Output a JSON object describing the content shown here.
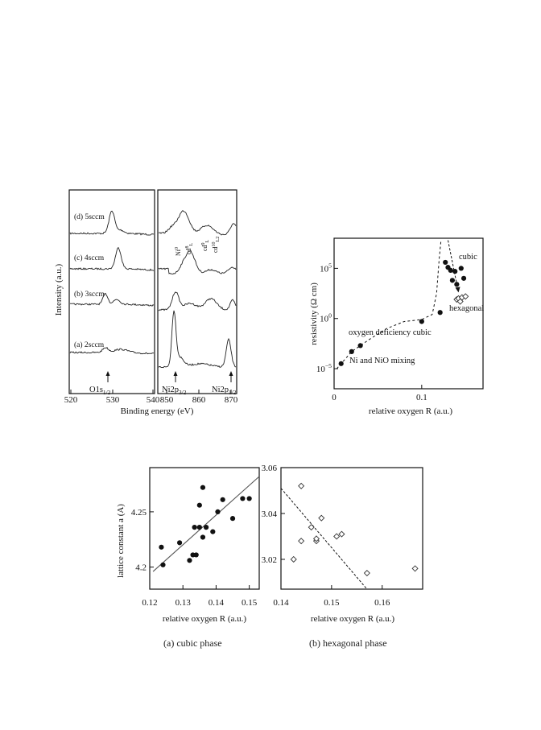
{
  "chart_data": [
    {
      "id": "xps",
      "type": "line",
      "ylabel": "Intensity    (a.u.)",
      "xlabel": "Binding energy (eV)",
      "panels": [
        {
          "xlim": [
            520,
            540
          ],
          "ticks": [
            "520",
            "530",
            "540"
          ]
        },
        {
          "xlim": [
            846,
            872
          ],
          "ticks": [
            "850",
            "860",
            "870"
          ]
        }
      ],
      "series": [
        {
          "name": "(d) 5sccm"
        },
        {
          "name": "(c) 4sccm"
        },
        {
          "name": "(b) 3sccm"
        },
        {
          "name": "(a) 2sccm"
        }
      ],
      "peak_labels": [
        "O1s",
        "Ni2p",
        "Ni2p"
      ],
      "peak_subs": [
        "1/2",
        "3/2",
        "1/2"
      ],
      "satellite_labels": [
        "Ni",
        "cd",
        "cd",
        "cd"
      ],
      "satellite_sups": [
        "0",
        "8",
        "9",
        "10"
      ],
      "satellite_subs": [
        "",
        "L",
        "L",
        "L2"
      ]
    },
    {
      "id": "resistivity",
      "type": "scatter",
      "xlabel": "relative oxygen    R (a.u.)",
      "ylabel": "resistivity (Ω cm)",
      "xlim": [
        0,
        0.17
      ],
      "ylim_log10": [
        -7,
        8
      ],
      "xticks": [
        {
          "v": 0,
          "t": "0"
        },
        {
          "v": 0.1,
          "t": "0.1"
        }
      ],
      "yticks": [
        {
          "v": 5,
          "t": "10",
          "e": "5"
        },
        {
          "v": 0,
          "t": "10",
          "e": "0"
        },
        {
          "v": -5,
          "t": "10",
          "e": "−5"
        }
      ],
      "series": [
        {
          "name": "cubic",
          "marker": "filled-circle",
          "x": [
            0.008,
            0.02,
            0.03,
            0.1,
            0.121,
            0.127,
            0.13,
            0.133,
            0.135,
            0.138,
            0.14,
            0.145,
            0.148
          ],
          "y_log10": [
            -4.5,
            -3.3,
            -2.7,
            -0.3,
            0.6,
            5.6,
            5.1,
            4.8,
            3.8,
            4.7,
            3.4,
            5.0,
            4.0
          ]
        },
        {
          "name": "hexagonal",
          "marker": "open-diamond",
          "x": [
            0.14,
            0.142,
            0.144,
            0.146,
            0.15
          ],
          "y_log10": [
            1.9,
            2.0,
            1.7,
            2.1,
            2.2
          ]
        }
      ],
      "annotations": [
        "cubic",
        "hexagonal",
        "oxygen deficiency cubic",
        "Ni and NiO mixing"
      ]
    },
    {
      "id": "cubic-lattice",
      "type": "scatter",
      "xlabel": "relative oxygen    R (a.u.)",
      "ylabel": "lattice constant a  (A)",
      "xlim": [
        0.12,
        0.153
      ],
      "ylim": [
        4.18,
        4.29
      ],
      "xticks": [
        "0.12",
        "0.13",
        "0.14",
        "0.15"
      ],
      "yticks": [
        "4.2",
        "4.25"
      ],
      "points": [
        [
          0.1235,
          4.218
        ],
        [
          0.124,
          4.202
        ],
        [
          0.129,
          4.222
        ],
        [
          0.132,
          4.206
        ],
        [
          0.133,
          4.211
        ],
        [
          0.134,
          4.211
        ],
        [
          0.1335,
          4.236
        ],
        [
          0.135,
          4.236
        ],
        [
          0.135,
          4.256
        ],
        [
          0.136,
          4.272
        ],
        [
          0.136,
          4.227
        ],
        [
          0.137,
          4.236
        ],
        [
          0.139,
          4.232
        ],
        [
          0.1405,
          4.25
        ],
        [
          0.142,
          4.261
        ],
        [
          0.145,
          4.244
        ],
        [
          0.148,
          4.262
        ],
        [
          0.15,
          4.262
        ]
      ],
      "fit": [
        [
          0.121,
          4.196
        ],
        [
          0.153,
          4.282
        ]
      ],
      "caption": "(a) cubic phase"
    },
    {
      "id": "hex-lattice",
      "type": "scatter",
      "xlabel": "relative oxygen    R (a.u.)",
      "xlim": [
        0.14,
        0.168
      ],
      "ylim": [
        3.007,
        3.06
      ],
      "xticks": [
        "0.14",
        "0.15",
        "0.16"
      ],
      "yticks": [
        "3.02",
        "3.04",
        "3.06"
      ],
      "points": [
        [
          0.1425,
          3.02
        ],
        [
          0.144,
          3.052
        ],
        [
          0.144,
          3.028
        ],
        [
          0.146,
          3.034
        ],
        [
          0.147,
          3.028
        ],
        [
          0.147,
          3.029
        ],
        [
          0.148,
          3.038
        ],
        [
          0.151,
          3.03
        ],
        [
          0.152,
          3.031
        ],
        [
          0.157,
          3.014
        ],
        [
          0.1665,
          3.016
        ]
      ],
      "fit": [
        [
          0.14,
          3.051
        ],
        [
          0.157,
          3.007
        ]
      ],
      "caption": "(b) hexagonal phase"
    }
  ]
}
